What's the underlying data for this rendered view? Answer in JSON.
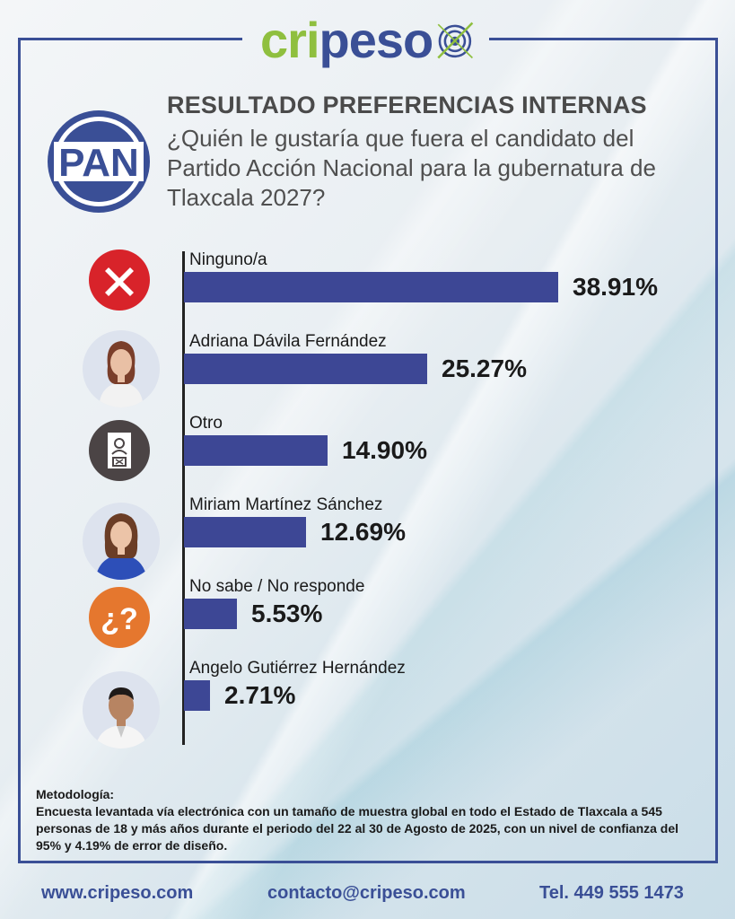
{
  "brand": {
    "name_part1": "cri",
    "name_part2": "peso",
    "colors": {
      "green": "#8fbf3f",
      "blue": "#3a4f96"
    }
  },
  "party_logo": {
    "text": "PAN",
    "color": "#3a4f96"
  },
  "header": {
    "title": "RESULTADO PREFERENCIAS INTERNAS",
    "question": "¿Quién le gustaría que fuera el candidato del Partido Acción Nacional para la gubernatura de Tlaxcala 2027?"
  },
  "chart_data": {
    "type": "bar",
    "orientation": "horizontal",
    "categories": [
      "Ninguno/a",
      "Adriana Dávila Fernández",
      "Otro",
      "Miriam Martínez Sánchez",
      "No sabe / No responde",
      "Angelo Gutiérrez Hernández"
    ],
    "values": [
      38.91,
      25.27,
      14.9,
      12.69,
      5.53,
      2.71
    ],
    "value_labels": [
      "38.91%",
      "25.27%",
      "14.90%",
      "12.69%",
      "5.53%",
      "2.71%"
    ],
    "bar_color": "#3d4795",
    "icons": [
      "x-mark-icon",
      "candidate-photo-adriana",
      "ballot-icon",
      "candidate-photo-miriam",
      "question-mark-icon",
      "candidate-photo-angelo"
    ]
  },
  "methodology": {
    "heading": "Metodología:",
    "text": "Encuesta levantada vía electrónica con un tamaño de muestra global en todo el Estado de Tlaxcala a 545 personas de 18 y más años durante el periodo del 22 al 30 de Agosto de 2025, con un nivel de confianza del 95% y 4.19% de error de diseño."
  },
  "footer": {
    "website": "www.cripeso.com",
    "email": "contacto@cripeso.com",
    "phone": "Tel. 449 555 1473"
  }
}
